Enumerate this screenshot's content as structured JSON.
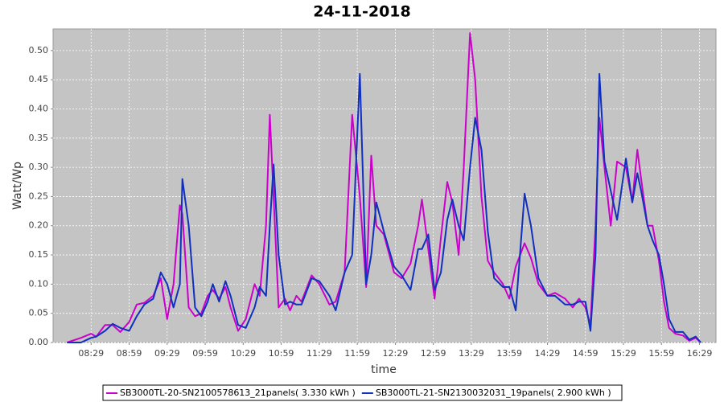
{
  "chart_data": {
    "type": "line",
    "title": "24-11-2018",
    "x_label": "time",
    "y_label": "Watt/Wp",
    "x": [
      "08:10",
      "08:21",
      "08:29",
      "08:33",
      "08:40",
      "08:46",
      "08:52",
      "08:59",
      "09:05",
      "09:11",
      "09:18",
      "09:24",
      "09:29",
      "09:34",
      "09:39",
      "09:41",
      "09:46",
      "09:51",
      "09:56",
      "10:01",
      "10:05",
      "10:10",
      "10:15",
      "10:19",
      "10:25",
      "10:31",
      "10:38",
      "10:42",
      "10:47",
      "10:50",
      "10:53",
      "10:57",
      "11:02",
      "11:06",
      "11:11",
      "11:15",
      "11:23",
      "11:29",
      "11:37",
      "11:42",
      "11:49",
      "11:55",
      "12:01",
      "12:06",
      "12:10",
      "12:14",
      "12:20",
      "12:28",
      "12:34",
      "12:41",
      "12:47",
      "12:50",
      "12:55",
      "13:00",
      "13:05",
      "13:10",
      "13:14",
      "13:19",
      "13:23",
      "13:28",
      "13:32",
      "13:37",
      "13:42",
      "13:47",
      "13:54",
      "13:59",
      "14:04",
      "14:11",
      "14:16",
      "14:22",
      "14:29",
      "14:35",
      "14:43",
      "14:49",
      "14:54",
      "14:59",
      "15:03",
      "15:07",
      "15:10",
      "15:14",
      "15:19",
      "15:24",
      "15:31",
      "15:36",
      "15:40",
      "15:43",
      "15:48",
      "15:52",
      "15:57",
      "16:01",
      "16:05",
      "16:10",
      "16:16",
      "16:21",
      "16:26",
      "16:30"
    ],
    "series": [
      {
        "name": "SB3000TL-20-SN2100578613_21panels( 3.330 kWh )",
        "color": "#cc00cc",
        "values": [
          0,
          0.008,
          0.015,
          0.01,
          0.03,
          0.03,
          0.018,
          0.035,
          0.065,
          0.068,
          0.08,
          0.11,
          0.04,
          0.1,
          0.235,
          0.22,
          0.06,
          0.045,
          0.05,
          0.08,
          0.09,
          0.075,
          0.095,
          0.06,
          0.02,
          0.04,
          0.1,
          0.08,
          0.2,
          0.39,
          0.25,
          0.06,
          0.075,
          0.055,
          0.08,
          0.07,
          0.115,
          0.1,
          0.065,
          0.07,
          0.12,
          0.39,
          0.25,
          0.095,
          0.32,
          0.2,
          0.185,
          0.12,
          0.11,
          0.135,
          0.2,
          0.245,
          0.16,
          0.075,
          0.18,
          0.275,
          0.24,
          0.15,
          0.3,
          0.53,
          0.45,
          0.25,
          0.14,
          0.12,
          0.1,
          0.075,
          0.13,
          0.17,
          0.145,
          0.1,
          0.08,
          0.085,
          0.075,
          0.06,
          0.075,
          0.06,
          0.03,
          0.2,
          0.385,
          0.3,
          0.2,
          0.31,
          0.3,
          0.24,
          0.33,
          0.28,
          0.2,
          0.2,
          0.14,
          0.07,
          0.025,
          0.015,
          0.012,
          0.003,
          0.008,
          0
        ]
      },
      {
        "name": "SB3000TL-21-SN2130032031_19panels( 2.900 kWh )",
        "color": "#1030c0",
        "values": [
          0,
          0,
          0.008,
          0.01,
          0.02,
          0.032,
          0.025,
          0.02,
          0.045,
          0.065,
          0.075,
          0.12,
          0.1,
          0.06,
          0.1,
          0.28,
          0.2,
          0.06,
          0.045,
          0.07,
          0.1,
          0.07,
          0.105,
          0.08,
          0.03,
          0.025,
          0.06,
          0.095,
          0.08,
          0.2,
          0.305,
          0.15,
          0.065,
          0.07,
          0.065,
          0.065,
          0.11,
          0.105,
          0.08,
          0.055,
          0.12,
          0.15,
          0.46,
          0.1,
          0.15,
          0.24,
          0.19,
          0.13,
          0.115,
          0.09,
          0.16,
          0.16,
          0.185,
          0.09,
          0.12,
          0.21,
          0.245,
          0.2,
          0.175,
          0.3,
          0.385,
          0.33,
          0.19,
          0.11,
          0.095,
          0.095,
          0.055,
          0.255,
          0.2,
          0.11,
          0.08,
          0.08,
          0.065,
          0.065,
          0.07,
          0.07,
          0.02,
          0.15,
          0.46,
          0.31,
          0.26,
          0.21,
          0.315,
          0.24,
          0.29,
          0.26,
          0.2,
          0.175,
          0.15,
          0.1,
          0.04,
          0.018,
          0.018,
          0.005,
          0.01,
          0
        ]
      }
    ],
    "xlim": [
      "07:59",
      "16:42"
    ],
    "xticks": [
      "08:29",
      "08:59",
      "09:29",
      "09:59",
      "10:29",
      "10:59",
      "11:29",
      "11:59",
      "12:29",
      "12:59",
      "13:29",
      "13:59",
      "14:29",
      "14:59",
      "15:29",
      "15:59",
      "16:29"
    ],
    "ylim": [
      0,
      0.537
    ],
    "yticks": [
      {
        "value": 0,
        "label": "0.00"
      },
      {
        "value": 0.05,
        "label": "0.05"
      },
      {
        "value": 0.1,
        "label": "0.10"
      },
      {
        "value": 0.15,
        "label": "0.15"
      },
      {
        "value": 0.2,
        "label": "0.20"
      },
      {
        "value": 0.25,
        "label": "0.25"
      },
      {
        "value": 0.3,
        "label": "0.30"
      },
      {
        "value": 0.35,
        "label": "0.35"
      },
      {
        "value": 0.4,
        "label": "0.40"
      },
      {
        "value": 0.45,
        "label": "0.45"
      },
      {
        "value": 0.5,
        "label": "0.50"
      }
    ],
    "grid": true,
    "legend": "bottom"
  }
}
